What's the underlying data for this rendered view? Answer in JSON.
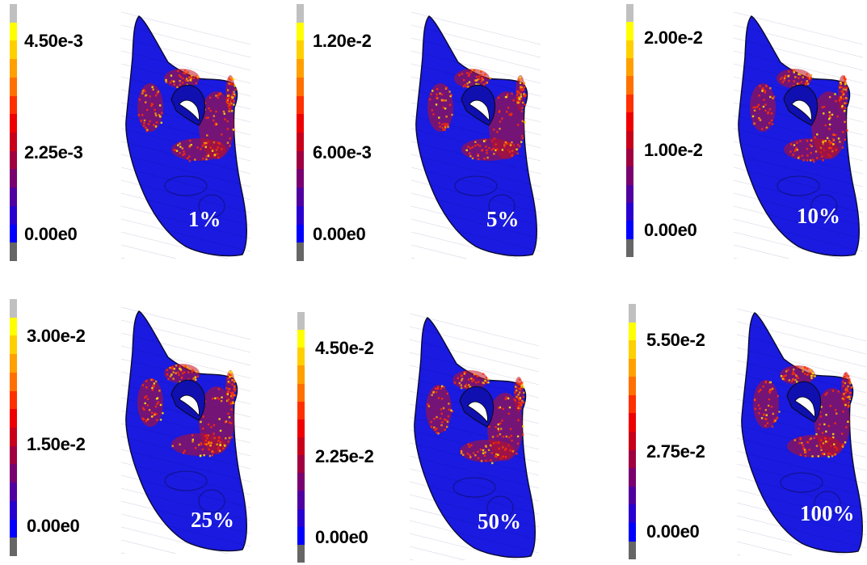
{
  "colorbar_colors": [
    "#c0c0c0",
    "#ffff00",
    "#ffd000",
    "#ffa000",
    "#ff7000",
    "#ff3000",
    "#ee0000",
    "#c8001a",
    "#a00040",
    "#7a0070",
    "#5000a0",
    "#2800d0",
    "#0000ff",
    "#666666"
  ],
  "mesh_colors": {
    "body": "#1a1ae0",
    "outline": "#0a0a30",
    "hot": "#ff3000",
    "hotter": "#ffa000",
    "hottest": "#ffee00",
    "red": "#c01020",
    "hole": "#ffffff"
  },
  "panels": [
    {
      "max_label": "4.50e-3",
      "mid_label": "2.25e-3",
      "min_label": "0.00e0",
      "percent": "1%"
    },
    {
      "max_label": "1.20e-2",
      "mid_label": "6.00e-3",
      "min_label": "0.00e0",
      "percent": "5%"
    },
    {
      "max_label": "2.00e-2",
      "mid_label": "1.00e-2",
      "min_label": "0.00e0",
      "percent": "10%"
    },
    {
      "max_label": "3.00e-2",
      "mid_label": "1.50e-2",
      "min_label": "0.00e0",
      "percent": "25%"
    },
    {
      "max_label": "4.50e-2",
      "mid_label": "2.25e-2",
      "min_label": "0.00e0",
      "percent": "50%"
    },
    {
      "max_label": "5.50e-2",
      "mid_label": "2.75e-2",
      "min_label": "0.00e0",
      "percent": "100%"
    }
  ]
}
